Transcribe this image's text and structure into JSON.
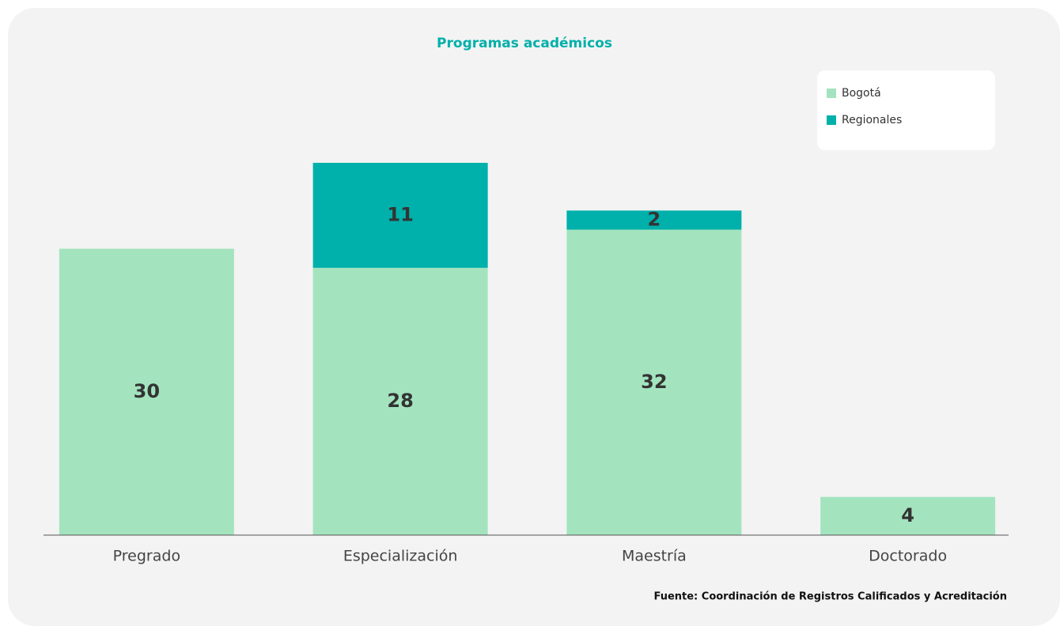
{
  "chart_data": {
    "type": "stacked-bar",
    "title": "Programas académicos",
    "categories": [
      "Pregrado",
      "Especialización",
      "Maestría",
      "Doctorado"
    ],
    "series": [
      {
        "name": "Bogotá",
        "color": "#a3e4bf",
        "values": [
          30,
          28,
          32,
          4
        ]
      },
      {
        "name": "Regionales",
        "color": "#00b0aa",
        "values": [
          null,
          11,
          2,
          null
        ]
      }
    ],
    "legend": "upper right",
    "source": "Fuente: Coordinación de Registros Calificados y Acreditación"
  }
}
